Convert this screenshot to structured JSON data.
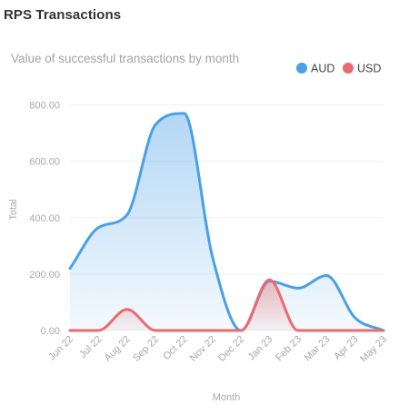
{
  "card": {
    "title": "RPS Transactions"
  },
  "chart_data": {
    "type": "area",
    "title": "Value of successful transactions by month",
    "xlabel": "Month",
    "ylabel": "Total",
    "categories": [
      "Jun 22",
      "Jul 22",
      "Aug 22",
      "Sep 22",
      "Oct 22",
      "Nov 22",
      "Dec 22",
      "Jan 23",
      "Feb 23",
      "Mar 23",
      "Apr 23",
      "May 23"
    ],
    "series": [
      {
        "name": "AUD",
        "color": "#4aa0e6",
        "values": [
          220,
          365,
          410,
          730,
          770,
          260,
          0,
          175,
          150,
          195,
          45,
          0
        ]
      },
      {
        "name": "USD",
        "color": "#ec6a6f",
        "values": [
          0,
          0,
          75,
          0,
          0,
          0,
          0,
          180,
          0,
          0,
          0,
          0
        ]
      }
    ],
    "y_ticks": [
      "0.00",
      "200.00",
      "400.00",
      "600.00",
      "800.00"
    ],
    "ylim": [
      0,
      850
    ],
    "grid": true,
    "legend_position": "top-right",
    "smooth": true
  }
}
